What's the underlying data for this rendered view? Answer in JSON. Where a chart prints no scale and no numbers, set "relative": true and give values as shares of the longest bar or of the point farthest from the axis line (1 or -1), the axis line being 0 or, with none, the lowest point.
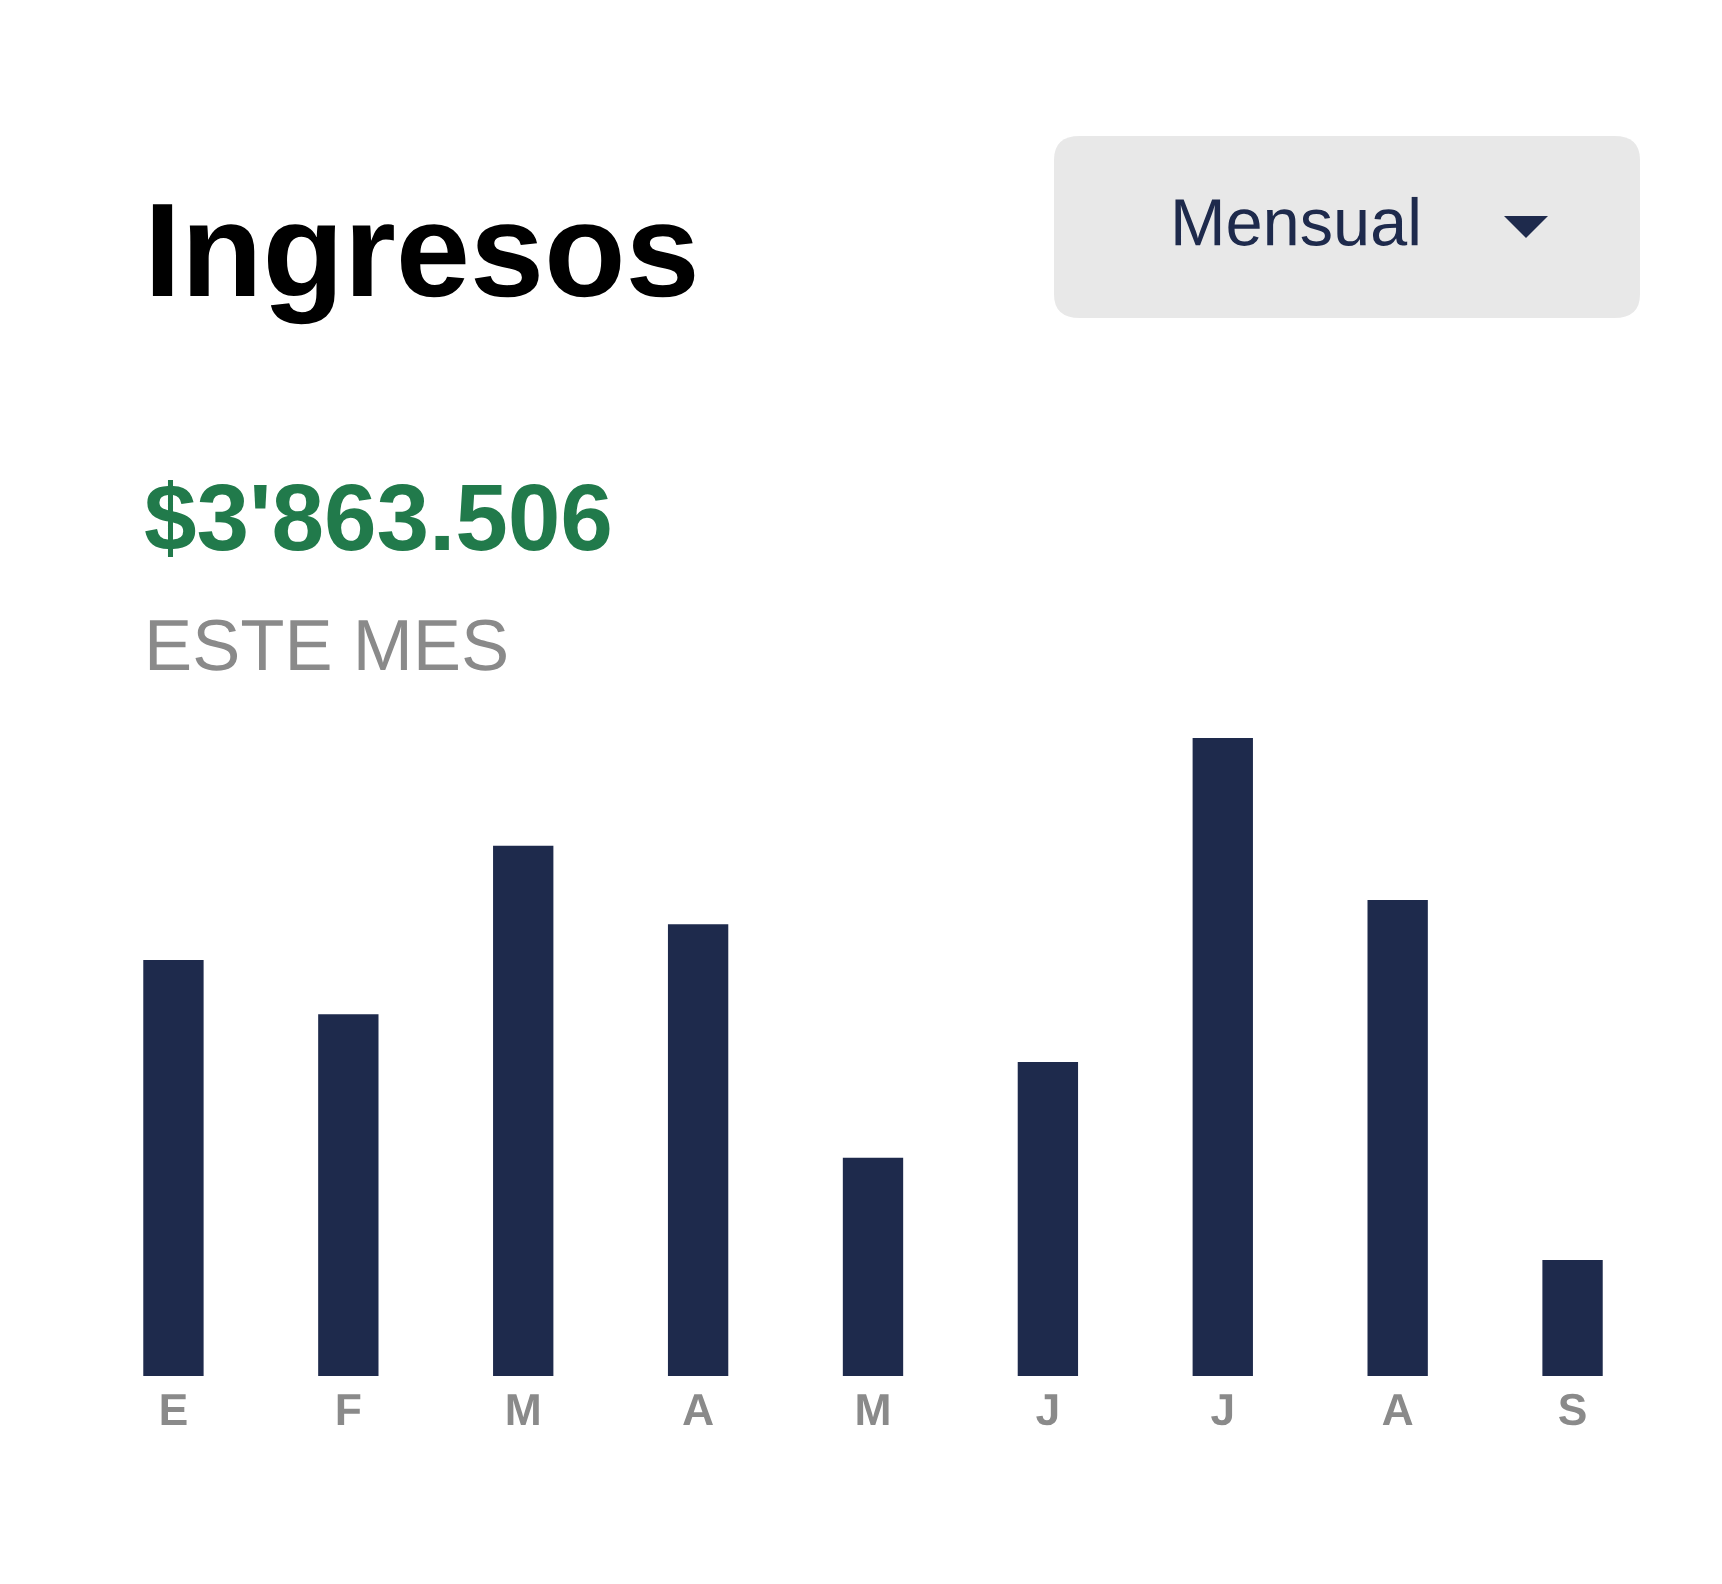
{
  "chart_data": {
    "type": "bar",
    "title": "Ingresos",
    "subtitle": "$3'863.506",
    "annotations": [
      "ESTE MES",
      "Mensual"
    ],
    "categories": [
      "E",
      "F",
      "M",
      "A",
      "M",
      "J",
      "J",
      "A",
      "S"
    ],
    "values": [
      0.652,
      0.567,
      0.831,
      0.708,
      0.342,
      0.492,
      1,
      0.746,
      0.182
    ],
    "color": "#1e2a4c",
    "relative": true,
    "grid": false,
    "legend": false
  }
}
